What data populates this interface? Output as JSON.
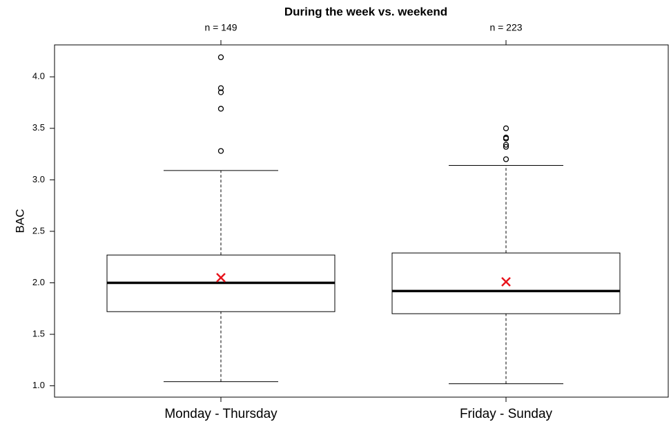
{
  "chart_data": {
    "type": "box",
    "title": "During the week vs. weekend",
    "ylabel": "BAC",
    "categories": [
      "Monday - Thursday",
      "Friday - Sunday"
    ],
    "n_labels": [
      "n = 149",
      "n = 223"
    ],
    "boxes": [
      {
        "whisker_low": 1.04,
        "q1": 1.72,
        "median": 2.0,
        "q3": 2.27,
        "whisker_high": 3.09,
        "mean": 2.05,
        "outliers": [
          3.28,
          3.69,
          3.85,
          3.89,
          4.19
        ]
      },
      {
        "whisker_low": 1.02,
        "q1": 1.7,
        "median": 1.92,
        "q3": 2.29,
        "whisker_high": 3.14,
        "mean": 2.01,
        "outliers": [
          3.2,
          3.32,
          3.34,
          3.4,
          3.41,
          3.5
        ]
      }
    ],
    "mean_color": "#e8141c",
    "ylim": [
      0.89,
      4.31
    ],
    "yticks": [
      {
        "value": 1,
        "label": "1.0"
      },
      1.5,
      {
        "value": 2,
        "label": "2.0"
      },
      2.5,
      {
        "value": 3,
        "label": "3.0"
      },
      3.5,
      {
        "value": 4,
        "label": "4.0"
      }
    ]
  }
}
